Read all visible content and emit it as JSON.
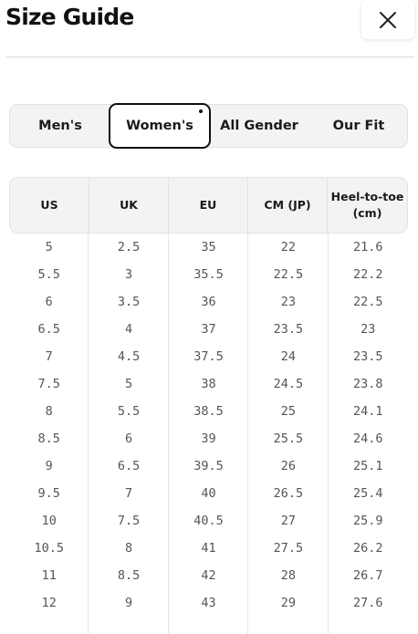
{
  "header": {
    "title": "Size Guide",
    "close_icon": "close-icon"
  },
  "tabs": [
    {
      "label": "Men's",
      "active": false
    },
    {
      "label": "Women's",
      "active": true
    },
    {
      "label": "All Gender",
      "active": false
    },
    {
      "label": "Our Fit",
      "active": false
    }
  ],
  "table": {
    "headers": [
      "US",
      "UK",
      "EU",
      "CM (JP)",
      "Heel-to-toe (cm)"
    ],
    "rows": [
      [
        "5",
        "2.5",
        "35",
        "22",
        "21.6"
      ],
      [
        "5.5",
        "3",
        "35.5",
        "22.5",
        "22.2"
      ],
      [
        "6",
        "3.5",
        "36",
        "23",
        "22.5"
      ],
      [
        "6.5",
        "4",
        "37",
        "23.5",
        "23"
      ],
      [
        "7",
        "4.5",
        "37.5",
        "24",
        "23.5"
      ],
      [
        "7.5",
        "5",
        "38",
        "24.5",
        "23.8"
      ],
      [
        "8",
        "5.5",
        "38.5",
        "25",
        "24.1"
      ],
      [
        "8.5",
        "6",
        "39",
        "25.5",
        "24.6"
      ],
      [
        "9",
        "6.5",
        "39.5",
        "26",
        "25.1"
      ],
      [
        "9.5",
        "7",
        "40",
        "26.5",
        "25.4"
      ],
      [
        "10",
        "7.5",
        "40.5",
        "27",
        "25.9"
      ],
      [
        "10.5",
        "8",
        "41",
        "27.5",
        "26.2"
      ],
      [
        "11",
        "8.5",
        "42",
        "28",
        "26.7"
      ],
      [
        "12",
        "9",
        "43",
        "29",
        "27.6"
      ]
    ]
  }
}
